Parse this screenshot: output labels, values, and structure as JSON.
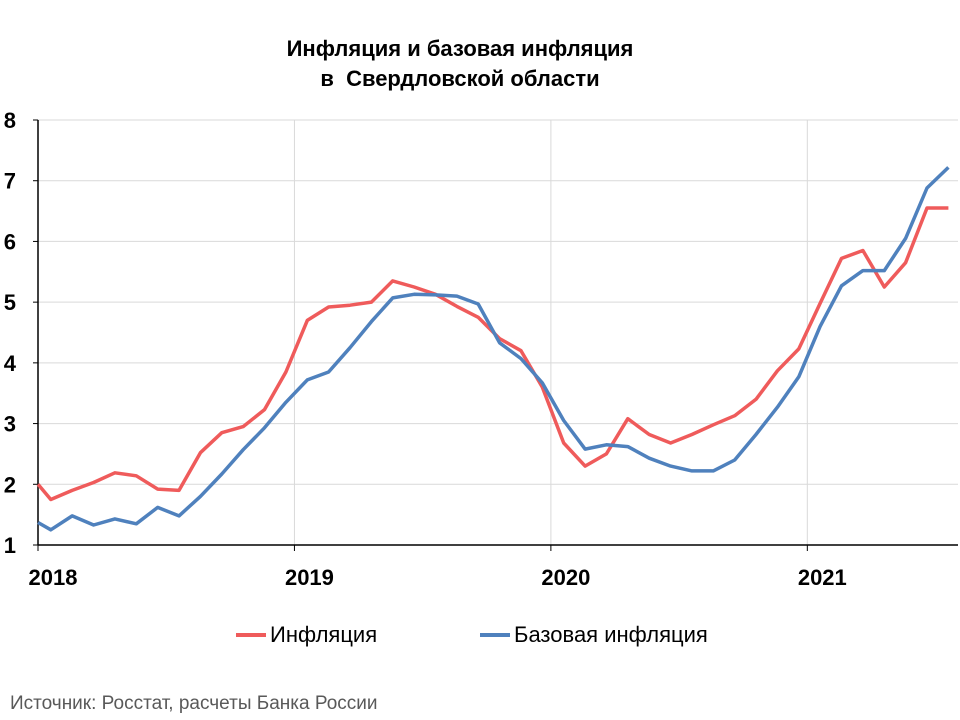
{
  "chart_data": {
    "type": "line",
    "title": [
      "Инфляция и базовая инфляция",
      "в  Свердловской области"
    ],
    "xlabel": "",
    "ylabel": "",
    "ylim": [
      1,
      8
    ],
    "yticks": [
      "1",
      "2",
      "3",
      "4",
      "5",
      "6",
      "7",
      "8"
    ],
    "xticks": [
      "2018",
      "2019",
      "2020",
      "2021"
    ],
    "x_unit": "months since Jan 2018",
    "x": [
      0,
      0.6,
      1.6,
      2.6,
      3.6,
      4.6,
      5.6,
      6.6,
      7.6,
      8.6,
      9.6,
      10.6,
      11.6,
      12.6,
      13.6,
      14.6,
      15.6,
      16.6,
      17.6,
      18.6,
      19.6,
      20.6,
      21.6,
      22.6,
      23.6,
      24.6,
      25.6,
      26.6,
      27.6,
      28.6,
      29.6,
      30.6,
      31.6,
      32.6,
      33.6,
      34.6,
      35.6,
      36.6,
      37.6,
      38.6,
      39.6,
      40.6,
      41.6,
      42.6
    ],
    "grid": true,
    "legend_position": "bottom",
    "series": [
      {
        "name": "Инфляция",
        "color": "#EF5B5B",
        "values": [
          2.0,
          1.75,
          1.9,
          2.03,
          2.19,
          2.14,
          1.92,
          1.9,
          2.52,
          2.85,
          2.95,
          3.23,
          3.85,
          4.7,
          4.92,
          4.95,
          5.0,
          5.35,
          5.25,
          5.13,
          4.93,
          4.75,
          4.4,
          4.2,
          3.6,
          2.68,
          2.3,
          2.5,
          3.08,
          2.82,
          2.68,
          2.82,
          2.98,
          3.13,
          3.4,
          3.87,
          4.23,
          4.98,
          5.72,
          5.85,
          5.25,
          5.65,
          6.55,
          6.55
        ]
      },
      {
        "name": "Базовая инфляция",
        "color": "#4F81BD",
        "values": [
          1.37,
          1.25,
          1.48,
          1.33,
          1.43,
          1.35,
          1.62,
          1.48,
          1.8,
          2.17,
          2.57,
          2.93,
          3.35,
          3.72,
          3.85,
          4.25,
          4.68,
          5.07,
          5.13,
          5.12,
          5.1,
          4.97,
          4.33,
          4.07,
          3.67,
          3.05,
          2.58,
          2.65,
          2.62,
          2.43,
          2.3,
          2.22,
          2.22,
          2.4,
          2.82,
          3.27,
          3.77,
          4.6,
          5.27,
          5.52,
          5.52,
          6.05,
          6.88,
          7.22
        ]
      }
    ]
  },
  "source": "Источник: Росстат, расчеты Банка России"
}
